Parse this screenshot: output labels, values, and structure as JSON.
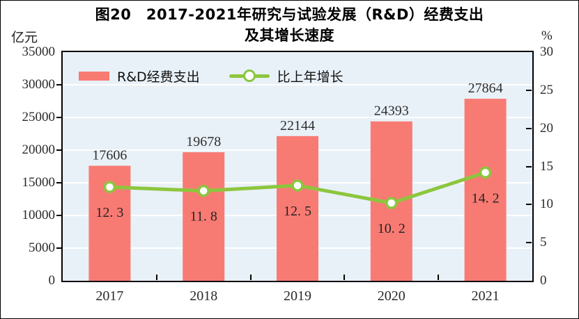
{
  "title": {
    "line1": "图20　2017-2021年研究与试验发展（R&D）经费支出",
    "line2": "及其增长速度"
  },
  "axes": {
    "left_unit": "亿元",
    "right_unit": "%"
  },
  "legend": {
    "bar_label": "R&D经费支出",
    "line_label": "比上年增长"
  },
  "colors": {
    "bar": "#F87B73",
    "line": "#8CC63E",
    "marker_fill": "#FFFFFF",
    "plot_bg": "#E9F1F8",
    "grid": "#FFFFFF",
    "label_text": "#2E2E2E"
  },
  "chart_data": {
    "type": "bar",
    "title": "图20 2017-2021年研究与试验发展（R&D）经费支出及其增长速度",
    "categories": [
      "2017",
      "2018",
      "2019",
      "2020",
      "2021"
    ],
    "series": [
      {
        "name": "R&D经费支出",
        "type": "bar",
        "axis": "left",
        "values": [
          17606,
          19678,
          22144,
          24393,
          27864
        ],
        "labels": [
          "17606",
          "19678",
          "22144",
          "24393",
          "27864"
        ]
      },
      {
        "name": "比上年增长",
        "type": "line",
        "axis": "right",
        "values": [
          12.3,
          11.8,
          12.5,
          10.2,
          14.2
        ],
        "labels": [
          "12. 3",
          "11. 8",
          "12. 5",
          "10. 2",
          "14. 2"
        ]
      }
    ],
    "left_axis": {
      "label": "亿元",
      "min": 0,
      "max": 35000,
      "step": 5000
    },
    "right_axis": {
      "label": "%",
      "min": 0,
      "max": 30,
      "step": 5
    },
    "grid": true,
    "legend_position": "top-left"
  }
}
